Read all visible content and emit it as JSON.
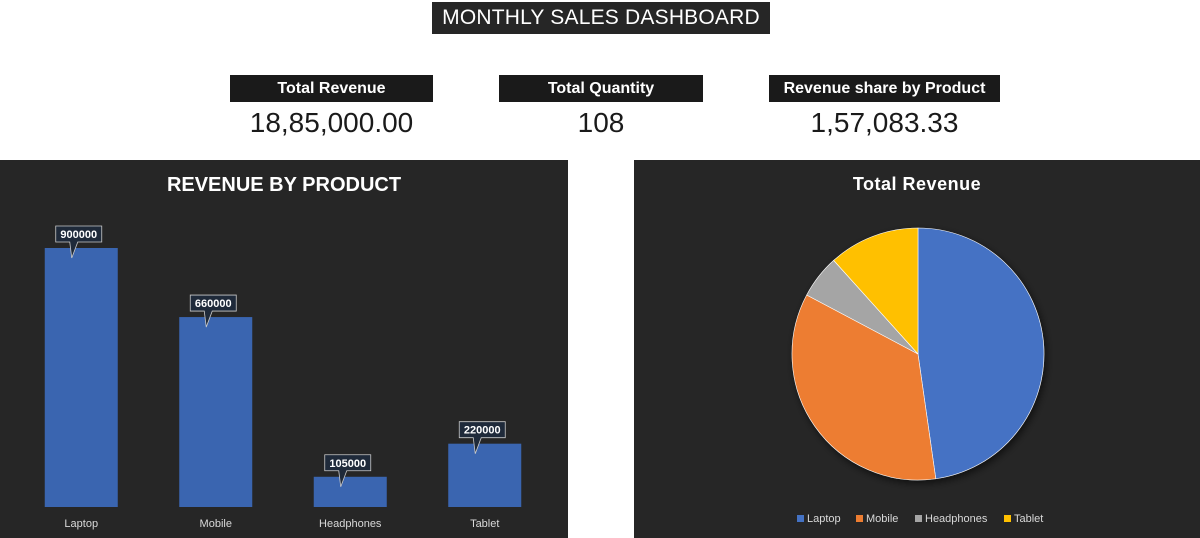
{
  "dashboard": {
    "title": "MONTHLY SALES DASHBOARD"
  },
  "kpis": [
    {
      "label": "Total Revenue",
      "value": "18,85,000.00"
    },
    {
      "label": "Total Quantity",
      "value": "108"
    },
    {
      "label": "Revenue share by Product",
      "value": "1,57,083.33"
    }
  ],
  "colors": {
    "panel_bg": "#262626",
    "bar": "#3a65b0",
    "laptop": "#4472c4",
    "mobile": "#ed7d31",
    "headphones": "#a5a5a5",
    "tablet": "#ffc000"
  },
  "chart_data": [
    {
      "type": "bar",
      "title": "REVENUE BY PRODUCT",
      "categories": [
        "Laptop",
        "Mobile",
        "Headphones",
        "Tablet"
      ],
      "values": [
        900000,
        660000,
        105000,
        220000
      ],
      "data_labels": [
        "900000",
        "660000",
        "105000",
        "220000"
      ],
      "ylim": [
        0,
        900000
      ],
      "grid": false,
      "legend": "none"
    },
    {
      "type": "pie",
      "title": "Total Revenue",
      "labels": [
        "Laptop",
        "Mobile",
        "Headphones",
        "Tablet"
      ],
      "values": [
        900000,
        660000,
        105000,
        220000
      ],
      "legend": "bottom"
    }
  ]
}
